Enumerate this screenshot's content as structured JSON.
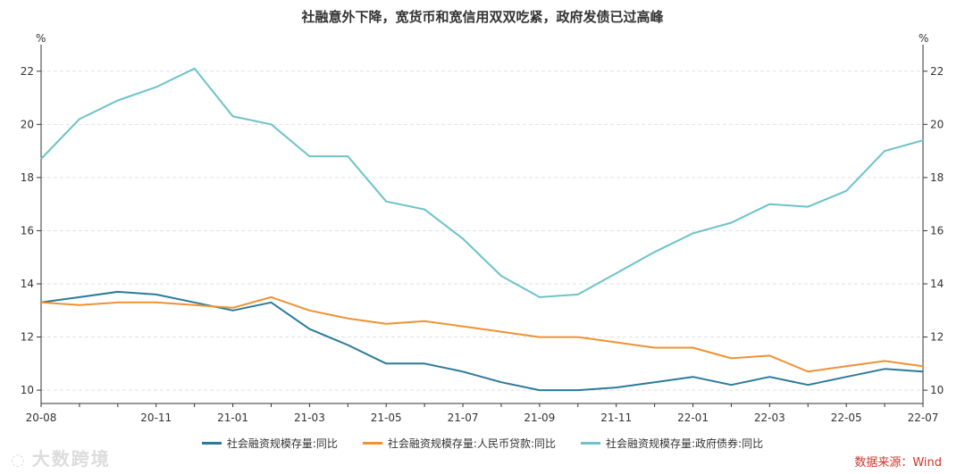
{
  "chart_data": {
    "type": "line",
    "title": "社融意外下降，宽货币和宽信用双双吃紧，政府发债已过高峰",
    "y_unit_left": "%",
    "y_unit_right": "%",
    "ylim": [
      9.5,
      23
    ],
    "yticks": [
      10,
      12,
      14,
      16,
      18,
      20,
      22
    ],
    "categories": [
      "20-08",
      "20-09",
      "20-10",
      "20-11",
      "20-12",
      "21-01",
      "21-02",
      "21-03",
      "21-04",
      "21-05",
      "21-06",
      "21-07",
      "21-08",
      "21-09",
      "21-10",
      "21-11",
      "21-12",
      "22-01",
      "22-02",
      "22-03",
      "22-04",
      "22-05",
      "22-06",
      "22-07"
    ],
    "x_tick_labels": [
      "20-08",
      "20-11",
      "21-01",
      "21-03",
      "21-05",
      "21-07",
      "21-09",
      "21-11",
      "22-01",
      "22-03",
      "22-05",
      "22-07"
    ],
    "series": [
      {
        "name": "社会融资规模存量:同比",
        "color": "#2a7a9b",
        "values": [
          13.3,
          13.5,
          13.7,
          13.6,
          13.3,
          13.0,
          13.3,
          12.3,
          11.7,
          11.0,
          11.0,
          10.7,
          10.3,
          10.0,
          10.0,
          10.1,
          10.3,
          10.5,
          10.2,
          10.5,
          10.2,
          10.5,
          10.8,
          10.7
        ]
      },
      {
        "name": "社会融资规模存量:人民币贷款:同比",
        "color": "#ee9233",
        "values": [
          13.3,
          13.2,
          13.3,
          13.3,
          13.2,
          13.1,
          13.5,
          13.0,
          12.7,
          12.5,
          12.6,
          12.4,
          12.2,
          12.0,
          12.0,
          11.8,
          11.6,
          11.6,
          11.2,
          11.3,
          10.7,
          10.9,
          11.1,
          10.9
        ]
      },
      {
        "name": "社会融资规模存量:政府债券:同比",
        "color": "#6cc3c9",
        "values": [
          18.7,
          20.2,
          20.9,
          21.4,
          22.1,
          20.3,
          20.0,
          18.8,
          18.8,
          17.1,
          16.8,
          15.7,
          14.3,
          13.5,
          13.6,
          14.4,
          15.2,
          15.9,
          16.3,
          17.0,
          16.9,
          17.5,
          19.0,
          19.4
        ]
      }
    ],
    "source": "数据来源：Wind"
  },
  "watermark": "大数跨境"
}
